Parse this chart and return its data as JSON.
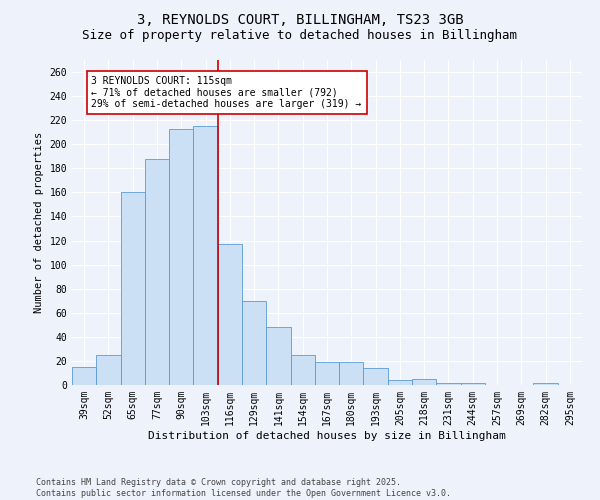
{
  "title_line1": "3, REYNOLDS COURT, BILLINGHAM, TS23 3GB",
  "title_line2": "Size of property relative to detached houses in Billingham",
  "xlabel": "Distribution of detached houses by size in Billingham",
  "ylabel": "Number of detached properties",
  "categories": [
    "39sqm",
    "52sqm",
    "65sqm",
    "77sqm",
    "90sqm",
    "103sqm",
    "116sqm",
    "129sqm",
    "141sqm",
    "154sqm",
    "167sqm",
    "180sqm",
    "193sqm",
    "205sqm",
    "218sqm",
    "231sqm",
    "244sqm",
    "257sqm",
    "269sqm",
    "282sqm",
    "295sqm"
  ],
  "values": [
    15,
    25,
    160,
    188,
    213,
    215,
    117,
    70,
    48,
    25,
    19,
    19,
    14,
    4,
    5,
    2,
    2,
    0,
    0,
    2,
    0
  ],
  "bar_color": "#cce0f5",
  "bar_edge_color": "#5b9bd5",
  "vline_x_index": 6,
  "vline_color": "#cc0000",
  "annotation_text": "3 REYNOLDS COURT: 115sqm\n← 71% of detached houses are smaller (792)\n29% of semi-detached houses are larger (319) →",
  "annotation_box_edge": "#cc0000",
  "ylim": [
    0,
    270
  ],
  "yticks": [
    0,
    20,
    40,
    60,
    80,
    100,
    120,
    140,
    160,
    180,
    200,
    220,
    240,
    260
  ],
  "footer_text": "Contains HM Land Registry data © Crown copyright and database right 2025.\nContains public sector information licensed under the Open Government Licence v3.0.",
  "background_color": "#eef2fb",
  "plot_background_color": "#eef2fb",
  "title_fontsize": 10,
  "subtitle_fontsize": 9,
  "annotation_fontsize": 7,
  "footer_fontsize": 6,
  "grid_color": "#ffffff",
  "tick_fontsize": 7,
  "ylabel_fontsize": 7.5,
  "xlabel_fontsize": 8
}
